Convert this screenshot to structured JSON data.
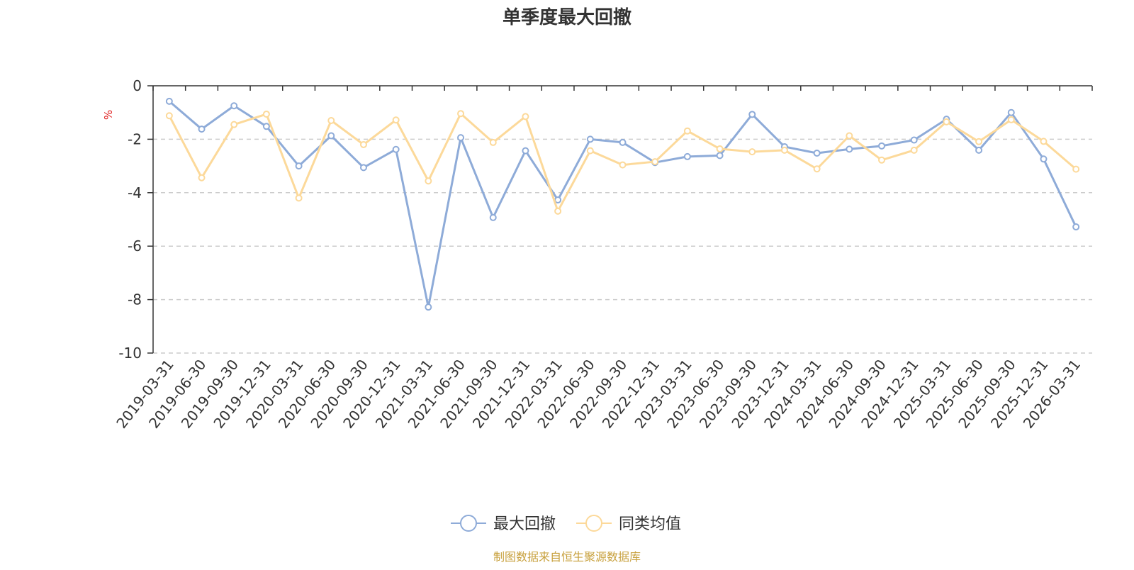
{
  "chart_data": {
    "type": "line",
    "title": "单季度最大回撤",
    "ylabel": "%",
    "ylim": [
      -10,
      0
    ],
    "yticks": [
      0,
      -2,
      -4,
      -6,
      -8,
      -10
    ],
    "grid": true,
    "legend_position": "bottom",
    "categories": [
      "2019-03-31",
      "2019-06-30",
      "2019-09-30",
      "2019-12-31",
      "2020-03-31",
      "2020-06-30",
      "2020-09-30",
      "2020-12-31",
      "2021-03-31",
      "2021-06-30",
      "2021-09-30",
      "2021-12-31",
      "2022-03-31",
      "2022-06-30",
      "2022-09-30",
      "2022-12-31",
      "2023-03-31",
      "2023-06-30",
      "2023-09-30",
      "2023-12-31",
      "2024-03-31",
      "2024-06-30",
      "2024-09-30",
      "2024-12-31",
      "2025-03-31",
      "2025-06-30",
      "2025-09-30",
      "2025-12-31",
      "2026-03-31"
    ],
    "series": [
      {
        "name": "最大回撤",
        "color": "#8eabd8",
        "values": [
          -0.58,
          -1.62,
          -0.75,
          -1.52,
          -3.0,
          -1.87,
          -3.06,
          -2.38,
          -8.28,
          -1.94,
          -4.93,
          -2.43,
          -4.27,
          -2.0,
          -2.12,
          -2.87,
          -2.65,
          -2.61,
          -1.07,
          -2.28,
          -2.52,
          -2.37,
          -2.25,
          -2.03,
          -1.25,
          -2.41,
          -1.0,
          -2.74,
          -5.28
        ]
      },
      {
        "name": "同类均值",
        "color": "#fcd99a",
        "values": [
          -1.12,
          -3.44,
          -1.45,
          -1.06,
          -4.2,
          -1.3,
          -2.2,
          -1.28,
          -3.56,
          -1.04,
          -2.12,
          -1.15,
          -4.69,
          -2.43,
          -2.96,
          -2.84,
          -1.69,
          -2.36,
          -2.47,
          -2.41,
          -3.11,
          -1.87,
          -2.78,
          -2.41,
          -1.35,
          -2.09,
          -1.27,
          -2.08,
          -3.12
        ]
      }
    ]
  },
  "source": {
    "text": "制图数据来自恒生聚源数据库",
    "color": "#c8a13e"
  },
  "style": {
    "axis_color": "#333333",
    "grid_color": "#cccccc",
    "unit_color": "#e02020"
  }
}
